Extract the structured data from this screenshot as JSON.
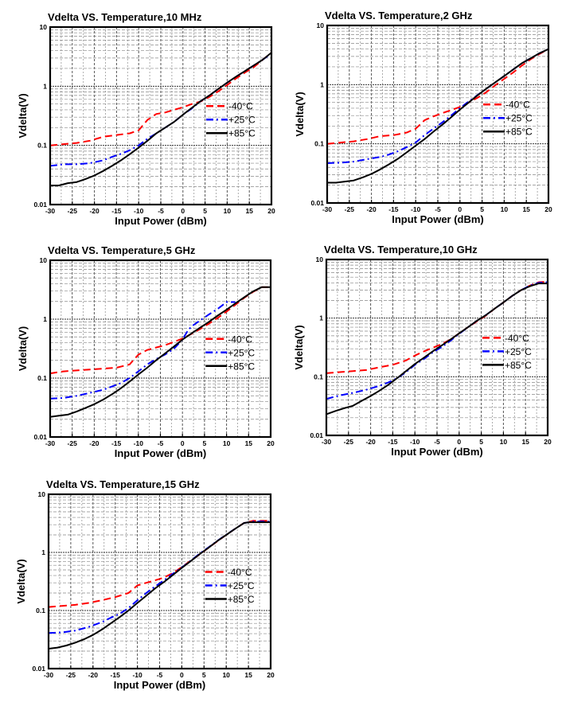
{
  "chart_data": [
    {
      "type": "line",
      "title": "Vdelta VS. Temperature,10 MHz",
      "xlabel": "Input Power (dBm)",
      "ylabel": "Vdelta(V)",
      "xlim": [
        -30,
        20
      ],
      "ylim": [
        0.01,
        10
      ],
      "yscale": "log",
      "grid": true,
      "xticks": [
        "-30",
        "-25",
        "-20",
        "-15",
        "-10",
        "-5",
        "0",
        "5",
        "10",
        "15",
        "20"
      ],
      "yticks": [
        "0.01",
        "0.1",
        "1",
        "10"
      ],
      "legend_position": "center-right",
      "series": [
        {
          "name": "-40°C",
          "color": "#ff0000",
          "style": "dashed",
          "x": [
            -30,
            -27,
            -24,
            -21,
            -18,
            -15,
            -12,
            -10,
            -8,
            -6,
            -4,
            -2,
            0,
            2,
            4,
            6,
            8,
            10,
            12,
            14,
            16,
            18,
            20
          ],
          "y": [
            0.1,
            0.105,
            0.11,
            0.12,
            0.14,
            0.15,
            0.16,
            0.18,
            0.27,
            0.34,
            0.36,
            0.4,
            0.44,
            0.5,
            0.55,
            0.66,
            0.82,
            1.05,
            1.35,
            1.7,
            2.1,
            2.8,
            3.7
          ]
        },
        {
          "name": "+25°C",
          "color": "#0000ff",
          "style": "dashdot",
          "x": [
            -30,
            -27,
            -24,
            -21,
            -18,
            -16,
            -14,
            -12,
            -10,
            -8,
            -6,
            -4,
            -2,
            0,
            2,
            4,
            6,
            8,
            10,
            12,
            14,
            16,
            18,
            20
          ],
          "y": [
            0.045,
            0.048,
            0.048,
            0.05,
            0.056,
            0.064,
            0.072,
            0.083,
            0.1,
            0.13,
            0.16,
            0.2,
            0.25,
            0.33,
            0.42,
            0.56,
            0.7,
            0.9,
            1.15,
            1.45,
            1.8,
            2.25,
            2.8,
            3.6
          ]
        },
        {
          "name": "+85°C",
          "color": "#000000",
          "style": "solid",
          "x": [
            -30,
            -28,
            -26,
            -24,
            -22,
            -20,
            -18,
            -16,
            -14,
            -12,
            -10,
            -8,
            -6,
            -4,
            -2,
            0,
            2,
            4,
            6,
            8,
            10,
            12,
            14,
            16,
            18,
            20
          ],
          "y": [
            0.021,
            0.021,
            0.023,
            0.024,
            0.027,
            0.031,
            0.037,
            0.045,
            0.056,
            0.071,
            0.092,
            0.12,
            0.16,
            0.2,
            0.25,
            0.33,
            0.43,
            0.56,
            0.7,
            0.9,
            1.15,
            1.45,
            1.8,
            2.25,
            2.8,
            3.7
          ]
        }
      ]
    },
    {
      "type": "line",
      "title": "Vdelta VS. Temperature,2 GHz",
      "xlabel": "Input Power (dBm)",
      "ylabel": "Vdelta(V)",
      "xlim": [
        -30,
        20
      ],
      "ylim": [
        0.01,
        10
      ],
      "yscale": "log",
      "grid": true,
      "xticks": [
        "-30",
        "-25",
        "-20",
        "-15",
        "-10",
        "-5",
        "0",
        "5",
        "10",
        "15",
        "20"
      ],
      "yticks": [
        "0.01",
        "0.1",
        "1",
        "10"
      ],
      "legend_position": "center-right",
      "series": [
        {
          "name": "-40°C",
          "color": "#ff0000",
          "style": "dashed",
          "x": [
            -30,
            -27,
            -24,
            -21,
            -18,
            -15,
            -12,
            -10,
            -8,
            -6,
            -4,
            -2,
            0,
            2,
            4,
            6,
            8,
            10,
            12,
            14,
            16,
            18,
            20
          ],
          "y": [
            0.1,
            0.105,
            0.11,
            0.12,
            0.135,
            0.14,
            0.155,
            0.18,
            0.25,
            0.29,
            0.33,
            0.37,
            0.42,
            0.5,
            0.6,
            0.75,
            0.98,
            1.25,
            1.6,
            2.1,
            2.7,
            3.3,
            4.0
          ]
        },
        {
          "name": "+25°C",
          "color": "#0000ff",
          "style": "dashdot",
          "x": [
            -30,
            -27,
            -24,
            -21,
            -18,
            -16,
            -14,
            -12,
            -10,
            -8,
            -6,
            -4,
            -2,
            0,
            2,
            4,
            6,
            8,
            10,
            12,
            14,
            16,
            18,
            20
          ],
          "y": [
            0.047,
            0.048,
            0.05,
            0.055,
            0.06,
            0.066,
            0.075,
            0.088,
            0.105,
            0.14,
            0.18,
            0.23,
            0.3,
            0.4,
            0.52,
            0.67,
            0.86,
            1.1,
            1.4,
            1.8,
            2.3,
            2.8,
            3.4,
            4.0
          ]
        },
        {
          "name": "+85°C",
          "color": "#000000",
          "style": "solid",
          "x": [
            -30,
            -28,
            -26,
            -24,
            -22,
            -20,
            -18,
            -16,
            -14,
            -12,
            -10,
            -8,
            -6,
            -4,
            -2,
            0,
            2,
            4,
            6,
            8,
            10,
            12,
            14,
            16,
            18,
            20
          ],
          "y": [
            0.022,
            0.022,
            0.023,
            0.024,
            0.027,
            0.031,
            0.037,
            0.045,
            0.056,
            0.072,
            0.093,
            0.12,
            0.16,
            0.21,
            0.28,
            0.38,
            0.5,
            0.66,
            0.86,
            1.1,
            1.4,
            1.8,
            2.3,
            2.8,
            3.4,
            4.0
          ]
        }
      ]
    },
    {
      "type": "line",
      "title": "Vdelta VS. Temperature,5 GHz",
      "xlabel": "Input Power (dBm)",
      "ylabel": "Vdelta(V)",
      "xlim": [
        -30,
        20
      ],
      "ylim": [
        0.01,
        10
      ],
      "yscale": "log",
      "grid": true,
      "xticks": [
        "-30",
        "-25",
        "-20",
        "-15",
        "-10",
        "-5",
        "0",
        "5",
        "10",
        "15",
        "20"
      ],
      "yticks": [
        "0.01",
        "0.1",
        "1",
        "10"
      ],
      "legend_position": "center-right",
      "series": [
        {
          "name": "-40°C",
          "color": "#ff0000",
          "style": "dashed",
          "x": [
            -30,
            -27,
            -24,
            -21,
            -18,
            -15,
            -12,
            -10,
            -8,
            -6,
            -4,
            -2,
            0,
            2,
            4,
            6,
            8,
            10,
            12,
            14,
            16,
            18,
            20
          ],
          "y": [
            0.12,
            0.13,
            0.135,
            0.14,
            0.145,
            0.15,
            0.17,
            0.25,
            0.3,
            0.33,
            0.36,
            0.41,
            0.47,
            0.56,
            0.68,
            0.84,
            1.05,
            1.35,
            1.75,
            2.3,
            2.9,
            3.5,
            3.5
          ]
        },
        {
          "name": "+25°C",
          "color": "#0000ff",
          "style": "dashdot",
          "x": [
            -30,
            -27,
            -24,
            -21,
            -18,
            -16,
            -14,
            -12,
            -10,
            -8,
            -6,
            -4,
            -2,
            0,
            1,
            2,
            4,
            6,
            8,
            10,
            12
          ],
          "y": [
            0.045,
            0.046,
            0.05,
            0.056,
            0.063,
            0.072,
            0.082,
            0.1,
            0.13,
            0.17,
            0.21,
            0.25,
            0.31,
            0.45,
            0.6,
            0.75,
            0.95,
            1.2,
            1.5,
            1.95,
            1.95
          ]
        },
        {
          "name": "+85°C",
          "color": "#000000",
          "style": "solid",
          "x": [
            -30,
            -28,
            -26,
            -24,
            -22,
            -20,
            -18,
            -16,
            -14,
            -12,
            -10,
            -8,
            -6,
            -4,
            -2,
            0,
            2,
            4,
            6,
            8,
            10,
            12,
            14,
            16,
            18,
            20
          ],
          "y": [
            0.022,
            0.023,
            0.024,
            0.027,
            0.031,
            0.036,
            0.043,
            0.053,
            0.067,
            0.087,
            0.115,
            0.15,
            0.2,
            0.26,
            0.34,
            0.45,
            0.57,
            0.72,
            0.9,
            1.15,
            1.45,
            1.85,
            2.35,
            2.95,
            3.5,
            3.5
          ]
        }
      ]
    },
    {
      "type": "line",
      "title": "Vdelta VS. Temperature,10 GHz",
      "xlabel": "Input Power (dBm)",
      "ylabel": "Vdelta(V)",
      "xlim": [
        -30,
        20
      ],
      "ylim": [
        0.01,
        10
      ],
      "yscale": "log",
      "grid": true,
      "xticks": [
        "-30",
        "-25",
        "-20",
        "-15",
        "-10",
        "-5",
        "0",
        "5",
        "10",
        "15",
        "20"
      ],
      "yticks": [
        "0.01",
        "0.1",
        "1",
        "10"
      ],
      "legend_position": "center-right",
      "series": [
        {
          "name": "-40°C",
          "color": "#ff0000",
          "style": "dashed",
          "x": [
            -30,
            -27,
            -24,
            -21,
            -18,
            -15,
            -12,
            -10,
            -8,
            -6,
            -4,
            -2,
            0,
            2,
            4,
            6,
            8,
            10,
            12,
            14,
            16,
            18,
            20
          ],
          "y": [
            0.115,
            0.12,
            0.125,
            0.13,
            0.145,
            0.16,
            0.19,
            0.23,
            0.27,
            0.31,
            0.36,
            0.43,
            0.55,
            0.7,
            0.88,
            1.1,
            1.45,
            1.85,
            2.4,
            3.0,
            3.6,
            4.1,
            4.2
          ]
        },
        {
          "name": "+25°C",
          "color": "#0000ff",
          "style": "dashdot",
          "x": [
            -30,
            -27,
            -24,
            -21,
            -18,
            -16,
            -14,
            -12,
            -10,
            -8,
            -6,
            -4,
            -2,
            0,
            2,
            4,
            6,
            8,
            10,
            12,
            14,
            16,
            18,
            20
          ],
          "y": [
            0.042,
            0.048,
            0.053,
            0.06,
            0.07,
            0.08,
            0.095,
            0.12,
            0.16,
            0.2,
            0.26,
            0.32,
            0.41,
            0.54,
            0.7,
            0.9,
            1.12,
            1.45,
            1.85,
            2.4,
            3.0,
            3.6,
            4.0,
            4.1
          ]
        },
        {
          "name": "+85°C",
          "color": "#000000",
          "style": "solid",
          "x": [
            -30,
            -28,
            -26,
            -24,
            -22,
            -20,
            -18,
            -16,
            -14,
            -12,
            -10,
            -8,
            -6,
            -4,
            -2,
            0,
            2,
            4,
            6,
            8,
            10,
            12,
            14,
            16,
            18,
            20
          ],
          "y": [
            0.023,
            0.026,
            0.029,
            0.032,
            0.039,
            0.047,
            0.058,
            0.073,
            0.095,
            0.125,
            0.165,
            0.21,
            0.27,
            0.34,
            0.43,
            0.55,
            0.7,
            0.9,
            1.12,
            1.45,
            1.85,
            2.4,
            3.0,
            3.5,
            3.9,
            3.9
          ]
        }
      ]
    },
    {
      "type": "line",
      "title": "Vdelta VS. Temperature,15 GHz",
      "xlabel": "Input Power (dBm)",
      "ylabel": "Vdelta(V)",
      "xlim": [
        -30,
        20
      ],
      "ylim": [
        0.01,
        10
      ],
      "yscale": "log",
      "grid": true,
      "xticks": [
        "-30",
        "-25",
        "-20",
        "-15",
        "-10",
        "-5",
        "0",
        "5",
        "10",
        "15",
        "20"
      ],
      "yticks": [
        "0.01",
        "0.1",
        "1",
        "10"
      ],
      "legend_position": "center-right",
      "series": [
        {
          "name": "-40°C",
          "color": "#ff0000",
          "style": "dashed",
          "x": [
            -30,
            -27,
            -24,
            -21,
            -18,
            -15,
            -12,
            -10,
            -8,
            -6,
            -4,
            -2,
            0,
            2,
            4,
            6,
            8,
            10,
            12,
            14,
            16,
            18,
            20
          ],
          "y": [
            0.115,
            0.12,
            0.125,
            0.135,
            0.15,
            0.17,
            0.2,
            0.27,
            0.3,
            0.33,
            0.37,
            0.44,
            0.56,
            0.72,
            0.92,
            1.2,
            1.55,
            2.0,
            2.55,
            3.2,
            3.5,
            3.5,
            3.5
          ]
        },
        {
          "name": "+25°C",
          "color": "#0000ff",
          "style": "dashdot",
          "x": [
            -30,
            -27,
            -24,
            -21,
            -18,
            -16,
            -14,
            -12,
            -10,
            -8,
            -6,
            -4,
            -2,
            0,
            2,
            4,
            6,
            8,
            10,
            12,
            14,
            16,
            18,
            20
          ],
          "y": [
            0.041,
            0.042,
            0.045,
            0.052,
            0.063,
            0.075,
            0.088,
            0.11,
            0.15,
            0.2,
            0.26,
            0.33,
            0.43,
            0.55,
            0.72,
            0.95,
            1.22,
            1.58,
            2.02,
            2.55,
            3.2,
            3.4,
            3.4,
            3.4
          ]
        },
        {
          "name": "+85°C",
          "color": "#000000",
          "style": "solid",
          "x": [
            -30,
            -28,
            -26,
            -24,
            -22,
            -20,
            -18,
            -16,
            -14,
            -12,
            -10,
            -8,
            -6,
            -4,
            -2,
            0,
            2,
            4,
            6,
            8,
            10,
            12,
            14,
            15,
            20
          ],
          "y": [
            0.022,
            0.023,
            0.025,
            0.028,
            0.032,
            0.038,
            0.047,
            0.06,
            0.077,
            0.1,
            0.135,
            0.18,
            0.24,
            0.31,
            0.41,
            0.54,
            0.71,
            0.93,
            1.2,
            1.57,
            2.0,
            2.55,
            3.2,
            3.3,
            3.3
          ]
        }
      ]
    }
  ]
}
